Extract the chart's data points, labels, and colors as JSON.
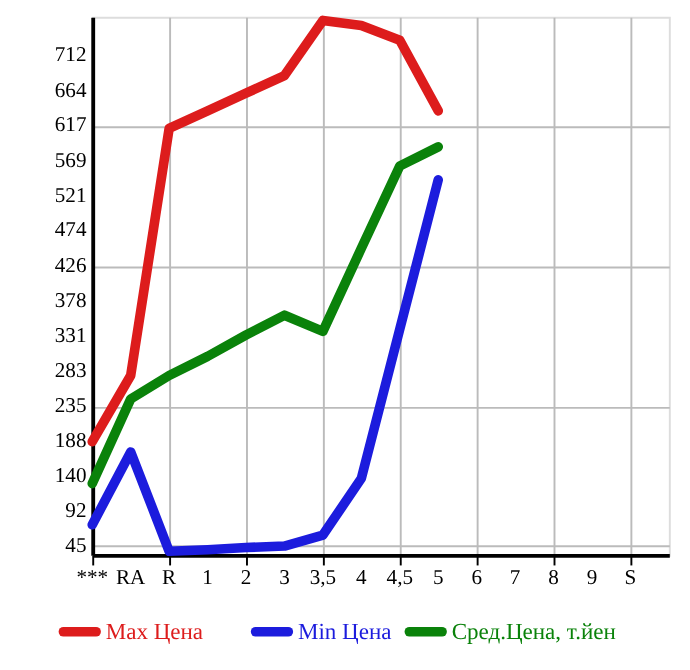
{
  "chart_data": {
    "type": "line",
    "categories": [
      "***",
      "RA",
      "R",
      "1",
      "2",
      "3",
      "3,5",
      "4",
      "4,5",
      "5",
      "6",
      "7",
      "8",
      "9",
      "S"
    ],
    "series": [
      {
        "name": "Max Цена",
        "color": "#dd1c1c",
        "values": [
          187,
          277,
          613,
          637,
          661,
          685,
          760,
          753,
          733,
          637,
          null,
          null,
          null,
          null,
          null
        ]
      },
      {
        "name": "Min Цена",
        "color": "#1c1cdd",
        "values": [
          74,
          173,
          38,
          40,
          43,
          45,
          60,
          137,
          340,
          543,
          null,
          null,
          null,
          null,
          null
        ]
      },
      {
        "name": "Сред.Цена, т.йен",
        "color": "#0a820a",
        "values": [
          130,
          245,
          277,
          303,
          332,
          359,
          337,
          450,
          562,
          588,
          null,
          null,
          null,
          null,
          null
        ]
      }
    ],
    "ylim": [
      33,
      765
    ],
    "yticks": [
      45,
      92,
      140,
      188,
      235,
      283,
      331,
      378,
      426,
      474,
      521,
      569,
      617,
      664,
      712
    ],
    "grid": true,
    "legend": "bottom",
    "marker": "none",
    "line_style": "solid"
  }
}
